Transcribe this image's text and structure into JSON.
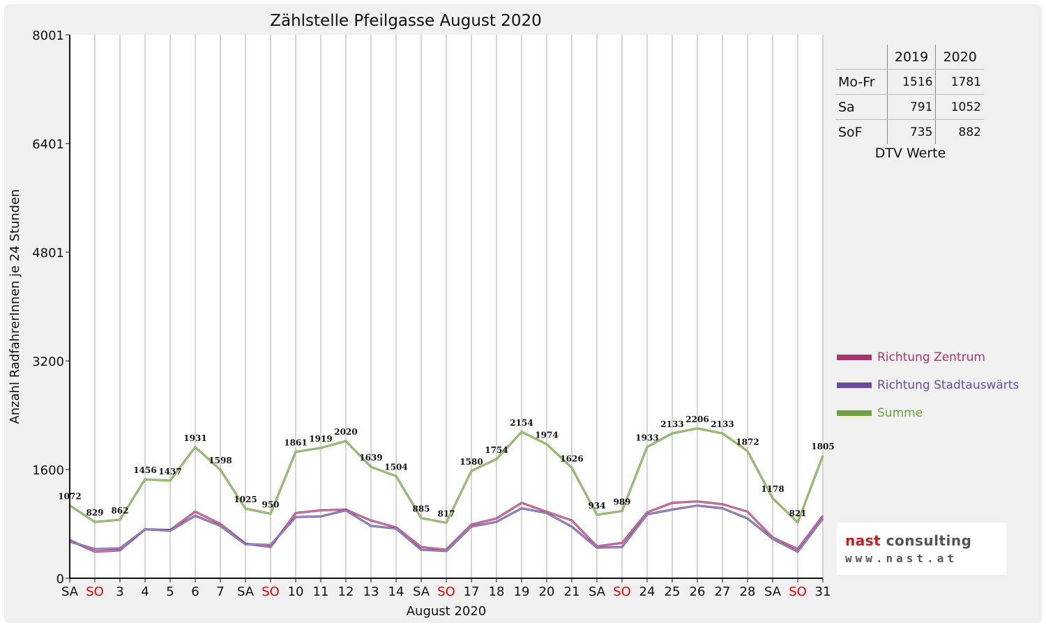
{
  "chart_data": {
    "type": "line",
    "title": "Zählstelle Pfeilgasse August 2020",
    "xlabel": "August 2020",
    "ylabel": "Anzahl RadfahrerInnen je 24 Stunden",
    "ylim": [
      0,
      8001
    ],
    "yticks": [
      0,
      1600,
      3200,
      4801,
      6401,
      8001
    ],
    "grid": "vertical",
    "legend_position": "right",
    "categories": [
      "SA",
      "SO",
      "3",
      "4",
      "5",
      "6",
      "7",
      "SA",
      "SO",
      "10",
      "11",
      "12",
      "13",
      "14",
      "SA",
      "SO",
      "17",
      "18",
      "19",
      "20",
      "21",
      "SA",
      "SO",
      "24",
      "25",
      "26",
      "27",
      "28",
      "SA",
      "SO",
      "31"
    ],
    "weekend_color": "#e00000",
    "series": [
      {
        "name": "Richtung Zentrum",
        "color": "#a6366b",
        "values": [
          560,
          390,
          410,
          720,
          710,
          980,
          800,
          510,
          460,
          960,
          1000,
          1010,
          850,
          750,
          460,
          420,
          790,
          880,
          1110,
          980,
          850,
          470,
          520,
          970,
          1110,
          1130,
          1090,
          980,
          600,
          430,
          920
        ]
      },
      {
        "name": "Richtung Stadtauswärts",
        "color": "#6a4c9c",
        "values": [
          540,
          430,
          440,
          720,
          700,
          920,
          770,
          500,
          490,
          900,
          910,
          1000,
          770,
          730,
          420,
          400,
          760,
          830,
          1030,
          960,
          760,
          450,
          460,
          940,
          1010,
          1070,
          1030,
          880,
          580,
          390,
          880
        ]
      },
      {
        "name": "Summe",
        "color": "#70a040",
        "values": [
          1072,
          829,
          862,
          1456,
          1437,
          1931,
          1598,
          1025,
          950,
          1861,
          1919,
          2020,
          1639,
          1504,
          885,
          817,
          1580,
          1754,
          2154,
          1974,
          1626,
          934,
          989,
          1933,
          2133,
          2206,
          2133,
          1872,
          1178,
          821,
          1805
        ]
      }
    ]
  },
  "dtv_table": {
    "columns": [
      "",
      "2019",
      "2020"
    ],
    "rows": [
      {
        "label": "Mo-Fr",
        "v2019": "1516",
        "v2020": "1781"
      },
      {
        "label": "Sa",
        "v2019": "791",
        "v2020": "1052"
      },
      {
        "label": "SoF",
        "v2019": "735",
        "v2020": "882"
      }
    ],
    "caption": "DTV Werte"
  },
  "logo": {
    "name_part1": "nast",
    "name_part2": " consulting",
    "url": "www.nast.at",
    "accent": "#c8191e"
  }
}
